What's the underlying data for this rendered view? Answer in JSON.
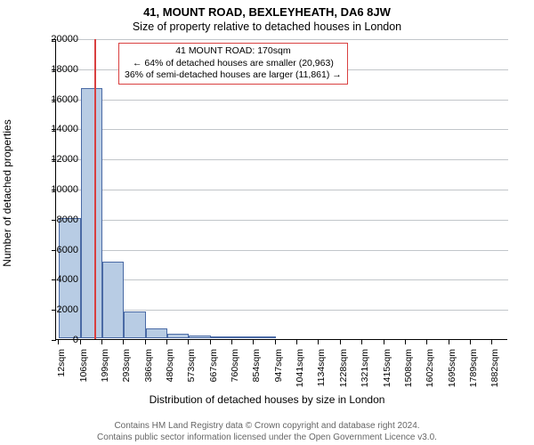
{
  "title": "41, MOUNT ROAD, BEXLEYHEATH, DA6 8JW",
  "subtitle": "Size of property relative to detached houses in London",
  "ylabel": "Number of detached properties",
  "xlabel": "Distribution of detached houses by size in London",
  "chart": {
    "type": "histogram",
    "xlim": [
      0,
      1950
    ],
    "ylim": [
      0,
      20000
    ],
    "ytick_step": 2000,
    "yticks": [
      0,
      2000,
      4000,
      6000,
      8000,
      10000,
      12000,
      14000,
      16000,
      18000,
      20000
    ],
    "xticks": [
      12,
      106,
      199,
      293,
      386,
      480,
      573,
      667,
      760,
      854,
      947,
      1041,
      1134,
      1228,
      1321,
      1415,
      1508,
      1602,
      1695,
      1789,
      1882
    ],
    "xtick_suffix": "sqm",
    "bar_color": "#b8cce4",
    "bar_border": "#4a6aa5",
    "highlight_color": "#d94040",
    "highlight_x": 170,
    "grid_color": "#9aa0a6",
    "background": "#ffffff",
    "bars": [
      {
        "x0": 12,
        "x1": 106,
        "y": 8000
      },
      {
        "x0": 106,
        "x1": 199,
        "y": 16600
      },
      {
        "x0": 199,
        "x1": 293,
        "y": 5100
      },
      {
        "x0": 293,
        "x1": 386,
        "y": 1800
      },
      {
        "x0": 386,
        "x1": 480,
        "y": 670
      },
      {
        "x0": 480,
        "x1": 573,
        "y": 300
      },
      {
        "x0": 573,
        "x1": 667,
        "y": 150
      },
      {
        "x0": 667,
        "x1": 760,
        "y": 120
      },
      {
        "x0": 760,
        "x1": 854,
        "y": 75
      },
      {
        "x0": 854,
        "x1": 947,
        "y": 50
      }
    ],
    "annotation": {
      "lines": [
        "41 MOUNT ROAD: 170sqm",
        "← 64% of detached houses are smaller (20,963)",
        "36% of semi-detached houses are larger (11,861) →"
      ],
      "border_color": "#d94040",
      "background": "#ffffff",
      "fontsize": 10.5
    }
  },
  "footer": {
    "line1": "Contains HM Land Registry data © Crown copyright and database right 2024.",
    "line2": "Contains public sector information licensed under the Open Government Licence v3.0.",
    "color": "#666666"
  }
}
